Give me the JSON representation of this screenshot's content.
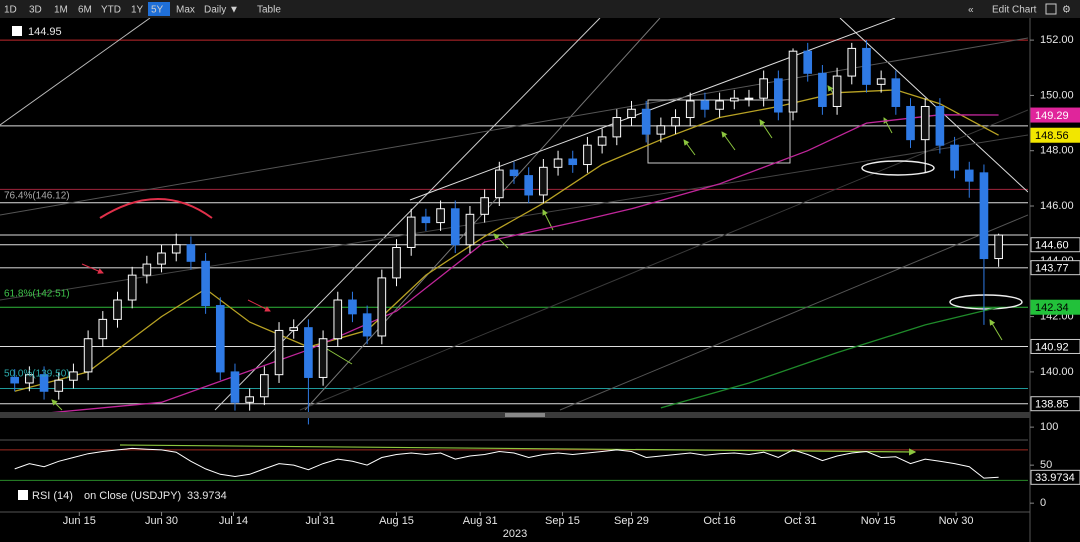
{
  "toolbar": {
    "ranges": [
      "1D",
      "3D",
      "1M",
      "6M",
      "YTD",
      "1Y",
      "5Y",
      "Max"
    ],
    "selected_range": 6,
    "interval": "Daily ▼",
    "table": "Table",
    "collapse": "«",
    "edit_chart": "Edit Chart",
    "settings": "⚙"
  },
  "chart_data": [
    {
      "type": "candlestick",
      "open": [
        139.8,
        139.6,
        139.9,
        139.3,
        139.7,
        140.0,
        141.2,
        141.9,
        142.6,
        143.5,
        143.9,
        144.3,
        144.6,
        144.0,
        142.4,
        140.0,
        138.9,
        139.1,
        139.9,
        141.5,
        141.6,
        139.8,
        141.2,
        142.6,
        142.1,
        141.3,
        143.4,
        144.5,
        145.6,
        145.4,
        145.9,
        144.6,
        145.7,
        146.3,
        147.3,
        147.1,
        146.4,
        147.4,
        147.7,
        147.5,
        148.2,
        148.5,
        149.2,
        149.5,
        148.6,
        148.9,
        149.2,
        149.8,
        149.5,
        149.8,
        149.9,
        149.9,
        150.6,
        149.4,
        151.6,
        150.8,
        149.6,
        150.7,
        151.7,
        150.4,
        150.6,
        149.6,
        148.4,
        149.6,
        148.2,
        147.3,
        147.2,
        144.1
      ],
      "high": [
        140.1,
        140.2,
        140.2,
        140.0,
        140.3,
        141.5,
        142.2,
        142.9,
        143.8,
        144.2,
        144.6,
        145.0,
        144.9,
        144.3,
        142.7,
        140.3,
        139.4,
        140.2,
        141.8,
        141.9,
        141.9,
        141.5,
        142.9,
        142.9,
        142.4,
        143.7,
        144.8,
        145.9,
        145.9,
        146.2,
        146.2,
        146.0,
        146.6,
        147.6,
        147.6,
        147.4,
        147.7,
        148.0,
        148.0,
        148.5,
        148.8,
        149.5,
        149.8,
        149.8,
        149.2,
        149.5,
        150.1,
        150.1,
        150.1,
        150.2,
        150.2,
        150.9,
        150.9,
        151.7,
        151.9,
        151.1,
        151.0,
        151.9,
        152.0,
        150.9,
        150.9,
        149.9,
        149.9,
        149.9,
        148.5,
        147.6,
        147.5,
        145.0
      ],
      "low": [
        139.3,
        139.3,
        139.0,
        139.0,
        139.4,
        139.7,
        140.9,
        141.6,
        142.3,
        143.2,
        143.6,
        144.0,
        143.7,
        142.1,
        139.7,
        138.6,
        138.6,
        138.8,
        139.6,
        141.2,
        138.1,
        139.5,
        140.9,
        141.8,
        141.0,
        141.0,
        143.1,
        144.2,
        145.1,
        145.1,
        144.3,
        144.3,
        145.4,
        146.0,
        146.8,
        146.1,
        146.1,
        147.1,
        147.2,
        147.2,
        147.9,
        148.2,
        148.9,
        148.3,
        148.3,
        148.6,
        148.9,
        149.2,
        149.2,
        149.5,
        149.6,
        149.6,
        149.1,
        149.1,
        150.5,
        149.3,
        149.3,
        150.4,
        150.1,
        150.1,
        149.3,
        148.1,
        147.2,
        147.9,
        147.0,
        146.3,
        141.7,
        143.8
      ],
      "close": [
        139.6,
        139.9,
        139.3,
        139.7,
        140.0,
        141.2,
        141.9,
        142.6,
        143.5,
        143.9,
        144.3,
        144.6,
        144.0,
        142.4,
        140.0,
        138.9,
        139.1,
        139.9,
        141.5,
        141.6,
        139.8,
        141.2,
        142.6,
        142.1,
        141.3,
        143.4,
        144.5,
        145.6,
        145.4,
        145.9,
        144.6,
        145.7,
        146.3,
        147.3,
        147.1,
        146.4,
        147.4,
        147.7,
        147.5,
        148.2,
        148.5,
        149.2,
        149.5,
        148.6,
        148.9,
        149.2,
        149.8,
        149.5,
        149.8,
        149.9,
        149.9,
        150.6,
        149.4,
        151.6,
        150.8,
        149.6,
        150.7,
        151.7,
        150.4,
        150.6,
        149.6,
        148.4,
        149.6,
        148.2,
        147.3,
        146.9,
        144.1,
        144.95
      ],
      "up_color": "#ffffff",
      "down_color": "#2f7ae5",
      "xlim": [
        -1,
        69
      ],
      "xticks": [
        {
          "value": 4.4,
          "label": "Jun 15"
        },
        {
          "value": 10.0,
          "label": "Jun 30"
        },
        {
          "value": 14.9,
          "label": "Jul 14"
        },
        {
          "value": 20.8,
          "label": "Jul 31"
        },
        {
          "value": 26.0,
          "label": "Aug 15"
        },
        {
          "value": 31.7,
          "label": "Aug 31"
        },
        {
          "value": 37.3,
          "label": "Sep 15"
        },
        {
          "value": 42.0,
          "label": "Sep 29"
        },
        {
          "value": 48.0,
          "label": "Oct 16"
        },
        {
          "value": 53.5,
          "label": "Oct 31"
        },
        {
          "value": 58.8,
          "label": "Nov 15"
        },
        {
          "value": 64.1,
          "label": "Nov 30"
        }
      ],
      "x_label": "2023",
      "ylim": [
        138.55,
        152.8
      ],
      "yticks": [
        {
          "value": 140,
          "label": "140.00"
        },
        {
          "value": 142,
          "label": "142.00"
        },
        {
          "value": 144,
          "label": "144.00"
        },
        {
          "value": 146,
          "label": "146.00"
        },
        {
          "value": 148,
          "label": "148.00"
        },
        {
          "value": 150,
          "label": "150.00"
        },
        {
          "value": 152,
          "label": "152.00"
        }
      ],
      "overlays": [
        {
          "color": "#b8a224",
          "badge_color": "#f2e600",
          "badge_text": "#000000",
          "x": [
            0,
            5,
            10,
            13,
            16,
            20,
            24,
            28,
            32,
            36,
            40,
            44,
            48,
            52,
            56,
            60,
            63,
            67
          ],
          "values": [
            139.3,
            140.0,
            142.0,
            143.0,
            141.8,
            140.9,
            141.5,
            143.5,
            144.9,
            146.1,
            147.5,
            148.4,
            149.2,
            149.6,
            150.1,
            150.2,
            149.7,
            148.56
          ]
        },
        {
          "color": "#c0269a",
          "badge_color": "#e0259b",
          "badge_text": "#ffffff",
          "x": [
            0,
            10,
            20,
            26,
            32,
            38,
            42,
            48,
            54,
            58,
            63,
            67
          ],
          "values": [
            138.4,
            138.9,
            140.8,
            142.2,
            144.7,
            145.4,
            145.9,
            146.8,
            148.0,
            149.0,
            149.3,
            149.29
          ]
        },
        {
          "color": "#1f8a2a",
          "badge_color": "#22c13a",
          "badge_text": "#000000",
          "x": [
            44,
            50,
            56,
            62,
            67
          ],
          "values": [
            138.7,
            139.6,
            140.7,
            141.7,
            142.34
          ]
        }
      ],
      "levels": [
        {
          "value": 152,
          "color": "#c0282d"
        },
        {
          "value": 148.9,
          "color": "#dddddd"
        },
        {
          "value": 146.6,
          "color": "#a0243c"
        },
        {
          "value": 146.12,
          "color": "#dddddd"
        },
        {
          "value": 144.95,
          "color": "#dddddd"
        },
        {
          "value": 144.6,
          "label": "144.60",
          "color": "#dddddd",
          "badge": true
        },
        {
          "value": 143.77,
          "color": "#dddddd",
          "badge": true
        },
        {
          "value": 142.34,
          "color": "#2fb83a"
        },
        {
          "value": 140.92,
          "color": "#dddddd",
          "badge": true
        },
        {
          "value": 139.4,
          "color": "#1f9a9a"
        },
        {
          "value": 138.85,
          "color": "#dddddd",
          "badge": true
        }
      ],
      "annotations": [
        "76.4%(146.12)",
        "61.8%(142.51)",
        "50.0%(139.50)"
      ]
    },
    {
      "type": "line",
      "name": "RSI (14)",
      "source": "on Close (USDJPY)",
      "color": "#ffffff",
      "values": [
        45,
        52,
        48,
        55,
        60,
        65,
        68,
        70,
        72,
        71,
        70,
        67,
        55,
        45,
        38,
        35,
        38,
        45,
        52,
        50,
        44,
        52,
        58,
        55,
        50,
        60,
        64,
        66,
        64,
        66,
        58,
        62,
        64,
        68,
        66,
        60,
        64,
        66,
        64,
        66,
        68,
        70,
        68,
        60,
        62,
        64,
        66,
        63,
        65,
        66,
        64,
        67,
        60,
        70,
        64,
        56,
        62,
        66,
        68,
        60,
        61,
        52,
        58,
        55,
        52,
        48,
        33,
        33.9734
      ],
      "ylim": [
        -9,
        112
      ],
      "yticks": [
        0,
        50,
        100
      ],
      "levels": [
        {
          "value": 70,
          "color": "#a02a20"
        },
        {
          "value": 30,
          "color": "#2a8a2a"
        }
      ]
    }
  ]
}
